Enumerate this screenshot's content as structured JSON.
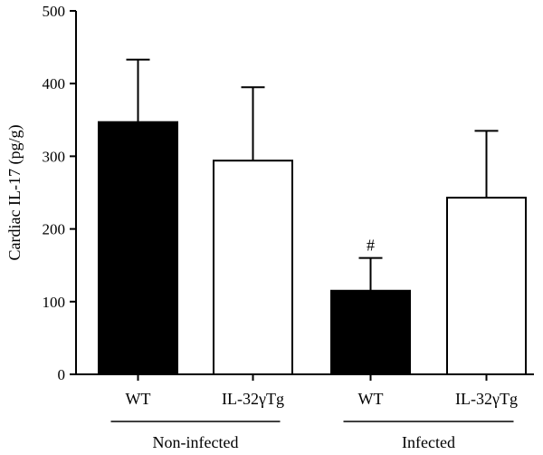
{
  "chart_data": {
    "type": "bar",
    "ylabel": "Cardiac IL-17 (pg/g)",
    "ylim": [
      0,
      500
    ],
    "yticks": [
      0,
      100,
      200,
      300,
      400,
      500
    ],
    "categories": [
      "WT",
      "IL-32γTg",
      "WT",
      "IL-32γTg"
    ],
    "groups": [
      {
        "label": "Non-infected",
        "categories": [
          0,
          1
        ]
      },
      {
        "label": "Infected",
        "categories": [
          2,
          3
        ]
      }
    ],
    "values": [
      347,
      294,
      115,
      243
    ],
    "errors": [
      86,
      101,
      45,
      92
    ],
    "fills": [
      "#000000",
      "#ffffff",
      "#000000",
      "#ffffff"
    ],
    "annotations": [
      "",
      "",
      "#",
      ""
    ],
    "grid": false
  }
}
